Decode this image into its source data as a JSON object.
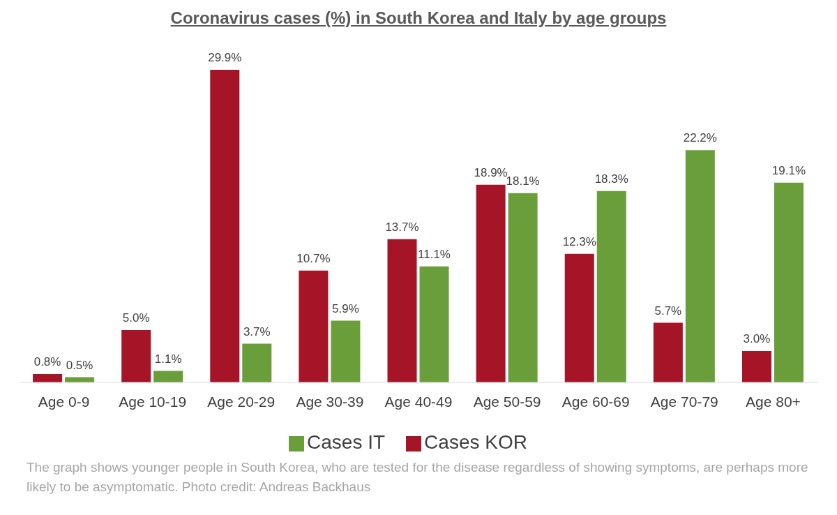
{
  "chart_data": {
    "type": "bar",
    "title": "Coronavirus cases (%) in South Korea and Italy by age groups",
    "categories": [
      "Age 0-9",
      "Age 10-19",
      "Age 20-29",
      "Age 30-39",
      "Age 40-49",
      "Age 50-59",
      "Age 60-69",
      "Age 70-79",
      "Age 80+"
    ],
    "series": [
      {
        "name": "Cases KOR",
        "color": "#a51427",
        "values": [
          0.8,
          5.0,
          29.9,
          10.7,
          13.7,
          18.9,
          12.3,
          5.7,
          3.0
        ],
        "value_labels": [
          "0.8%",
          "5.0%",
          "29.9%",
          "10.7%",
          "13.7%",
          "18.9%",
          "12.3%",
          "5.7%",
          "3.0%"
        ]
      },
      {
        "name": "Cases IT",
        "color": "#6a9e3b",
        "values": [
          0.5,
          1.1,
          3.7,
          5.9,
          11.1,
          18.1,
          18.3,
          22.2,
          19.1
        ],
        "value_labels": [
          "0.5%",
          "1.1%",
          "3.7%",
          "5.9%",
          "11.1%",
          "18.1%",
          "18.3%",
          "22.2%",
          "19.1%"
        ]
      }
    ],
    "legend": "bottom",
    "grid": false,
    "annotations": [
      "The graph shows younger people in South Korea, who are tested for the disease regardless of showing symptoms, are perhaps more likely to be asymptomatic. Photo credit: Andreas Backhaus"
    ]
  }
}
